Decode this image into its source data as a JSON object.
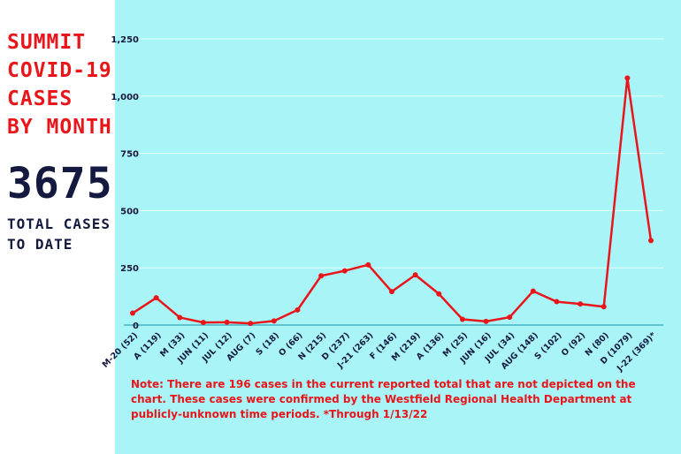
{
  "sidebar": {
    "title": "SUMMIT\nCOVID-19\nCASES\nBY MONTH",
    "total": "3675",
    "total_label": "TOTAL CASES\nTO DATE"
  },
  "note": "Note: There are 196 cases in the current reported total that are not depicted on the chart. These cases were confirmed by the Westfield Regional Health Department at publicly-unknown time periods.  *Through 1/13/22",
  "colors": {
    "line": "#e8161b",
    "background": "#a8f4f7",
    "title": "#e8161b",
    "total": "#14193f"
  },
  "chart_data": {
    "type": "line",
    "title": "SUMMIT COVID-19 CASES BY MONTH",
    "categories": [
      "M-20 (52)",
      "A (119)",
      "M (33)",
      "JUN (11)",
      "JUL (12)",
      "AUG (7)",
      "S (18)",
      "O (66)",
      "N (215)",
      "D (237)",
      "J-21 (263)",
      "F (146)",
      "M (219)",
      "A (136)",
      "M (25)",
      "JUN (16)",
      "JUL (34)",
      "AUG (148)",
      "S (102)",
      "O (92)",
      "N (80)",
      "D (1079)",
      "J-22 (369)*"
    ],
    "values": [
      52,
      119,
      33,
      11,
      12,
      7,
      18,
      66,
      215,
      237,
      263,
      146,
      219,
      136,
      25,
      16,
      34,
      148,
      102,
      92,
      80,
      1079,
      369
    ],
    "yticks": [
      "0",
      "250",
      "500",
      "750",
      "1,000",
      "1,250"
    ],
    "ylim": [
      0,
      1250
    ],
    "grid": true
  }
}
